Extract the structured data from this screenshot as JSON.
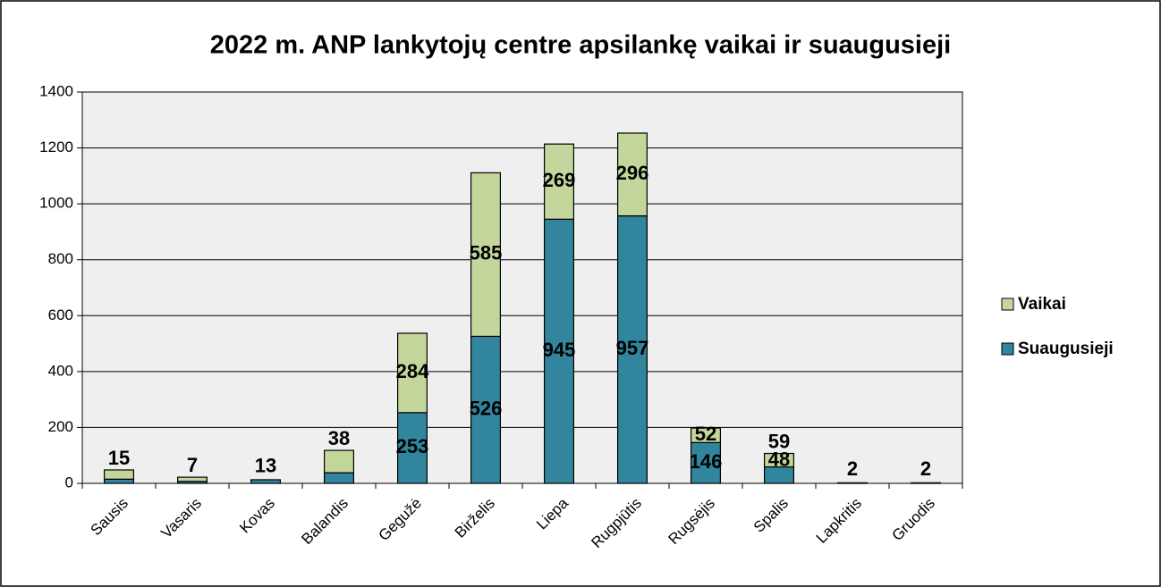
{
  "chart_data": {
    "type": "stacked_bar",
    "title": "2022 m. ANP lankytojų centre apsilankę vaikai ir suaugusieji",
    "categories": [
      "Sausis",
      "Vasaris",
      "Kovas",
      "Balandis",
      "Gegužė",
      "Birželis",
      "Liepa",
      "Rugpjūtis",
      "Rugsėjis",
      "Spalis",
      "Lapkritis",
      "Gruodis"
    ],
    "series": [
      {
        "name": "Suaugusieji",
        "color": "#31859c",
        "values": [
          15,
          7,
          13,
          38,
          253,
          526,
          945,
          957,
          146,
          59,
          2,
          2
        ],
        "value_labels": [
          "15",
          "7",
          "13",
          "38",
          "253",
          "526",
          "945",
          "957",
          "146",
          "59",
          "2",
          "2"
        ]
      },
      {
        "name": "Vaikai",
        "color": "#c3d69b",
        "values": [
          33,
          15,
          0,
          80,
          284,
          585,
          269,
          296,
          52,
          48,
          0,
          0
        ],
        "value_labels": [
          null,
          null,
          null,
          null,
          "284",
          "585",
          "269",
          "296",
          "52",
          "48",
          null,
          null
        ]
      }
    ],
    "ylim": [
      0,
      1400
    ],
    "yticks": [
      0,
      200,
      400,
      600,
      800,
      1000,
      1200,
      1400
    ],
    "grid": true,
    "legend": "right"
  }
}
